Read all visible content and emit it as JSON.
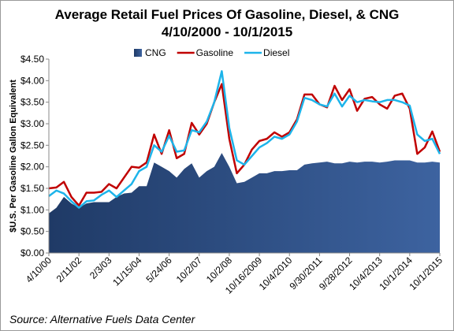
{
  "chart_data": {
    "type": "line",
    "title": "Average Retail Fuel Prices Of Gasoline, Diesel, & CNG",
    "subtitle": "4/10/2000 - 10/1/2015",
    "ylabel": "$U.S. Per Gasoline Gallon Equivalent",
    "source": "Source: Alternative Fuels Data Center",
    "legend": "top",
    "grid": false,
    "categories": [
      "4/10/00",
      null,
      null,
      null,
      "2/11/02",
      null,
      null,
      null,
      "2/3/03",
      null,
      null,
      null,
      "11/15/04",
      null,
      null,
      null,
      "5/24/06",
      null,
      null,
      null,
      "10/2/07",
      null,
      null,
      null,
      "10/2/08",
      null,
      null,
      null,
      "10/16/2009",
      null,
      null,
      null,
      "10/4/2010",
      null,
      null,
      null,
      "9/30/2011",
      null,
      null,
      null,
      "9/28/2012",
      null,
      null,
      null,
      "10/4/2013",
      null,
      null,
      null,
      "10/1/2014",
      null,
      null,
      null,
      "10/1/2015"
    ],
    "series": [
      {
        "name": "CNG",
        "type": "area",
        "color": "#2f4d80",
        "values": [
          0.92,
          1.05,
          1.3,
          1.15,
          1.05,
          1.15,
          1.18,
          1.18,
          1.18,
          1.3,
          1.38,
          1.4,
          1.55,
          1.55,
          2.1,
          2.0,
          1.9,
          1.75,
          1.95,
          2.08,
          1.75,
          1.9,
          2.0,
          2.32,
          2.0,
          1.62,
          1.65,
          1.75,
          1.85,
          1.85,
          1.9,
          1.9,
          1.92,
          1.92,
          2.05,
          2.08,
          2.1,
          2.12,
          2.08,
          2.08,
          2.12,
          2.1,
          2.12,
          2.12,
          2.1,
          2.12,
          2.15,
          2.15,
          2.15,
          2.1,
          2.1,
          2.12,
          2.1
        ]
      },
      {
        "name": "Gasoline",
        "type": "line",
        "color": "#c00000",
        "values": [
          1.5,
          1.52,
          1.65,
          1.3,
          1.1,
          1.4,
          1.4,
          1.42,
          1.6,
          1.5,
          1.75,
          2.0,
          1.98,
          2.1,
          2.75,
          2.3,
          2.85,
          2.2,
          2.3,
          3.02,
          2.75,
          3.0,
          3.5,
          3.92,
          2.65,
          1.85,
          2.05,
          2.4,
          2.6,
          2.65,
          2.8,
          2.7,
          2.8,
          3.1,
          3.68,
          3.68,
          3.45,
          3.38,
          3.88,
          3.55,
          3.8,
          3.3,
          3.58,
          3.62,
          3.45,
          3.35,
          3.65,
          3.7,
          3.35,
          2.3,
          2.45,
          2.82,
          2.35
        ]
      },
      {
        "name": "Diesel",
        "type": "line",
        "color": "#1db4ea",
        "values": [
          1.32,
          1.45,
          1.38,
          1.2,
          1.05,
          1.2,
          1.22,
          1.35,
          1.45,
          1.3,
          1.45,
          1.6,
          1.9,
          2.0,
          2.5,
          2.35,
          2.72,
          2.35,
          2.38,
          2.85,
          2.8,
          3.05,
          3.5,
          4.22,
          2.9,
          2.15,
          2.05,
          2.25,
          2.45,
          2.55,
          2.7,
          2.65,
          2.75,
          3.05,
          3.6,
          3.55,
          3.45,
          3.4,
          3.7,
          3.4,
          3.65,
          3.5,
          3.55,
          3.52,
          3.5,
          3.55,
          3.55,
          3.5,
          3.42,
          2.75,
          2.6,
          2.65,
          2.3
        ]
      }
    ],
    "ylim": [
      0,
      4.5
    ],
    "yticks": [
      {
        "value": 0,
        "label": "$0.00"
      },
      {
        "value": 0.5,
        "label": "$0.50"
      },
      {
        "value": 1,
        "label": "$1.00"
      },
      {
        "value": 1.5,
        "label": "$1.50"
      },
      {
        "value": 2,
        "label": "$2.00"
      },
      {
        "value": 2.5,
        "label": "$2.50"
      },
      {
        "value": 3,
        "label": "$3.00"
      },
      {
        "value": 3.5,
        "label": "$3.50"
      },
      {
        "value": 4,
        "label": "$4.00"
      },
      {
        "value": 4.5,
        "label": "$4.50"
      }
    ]
  }
}
